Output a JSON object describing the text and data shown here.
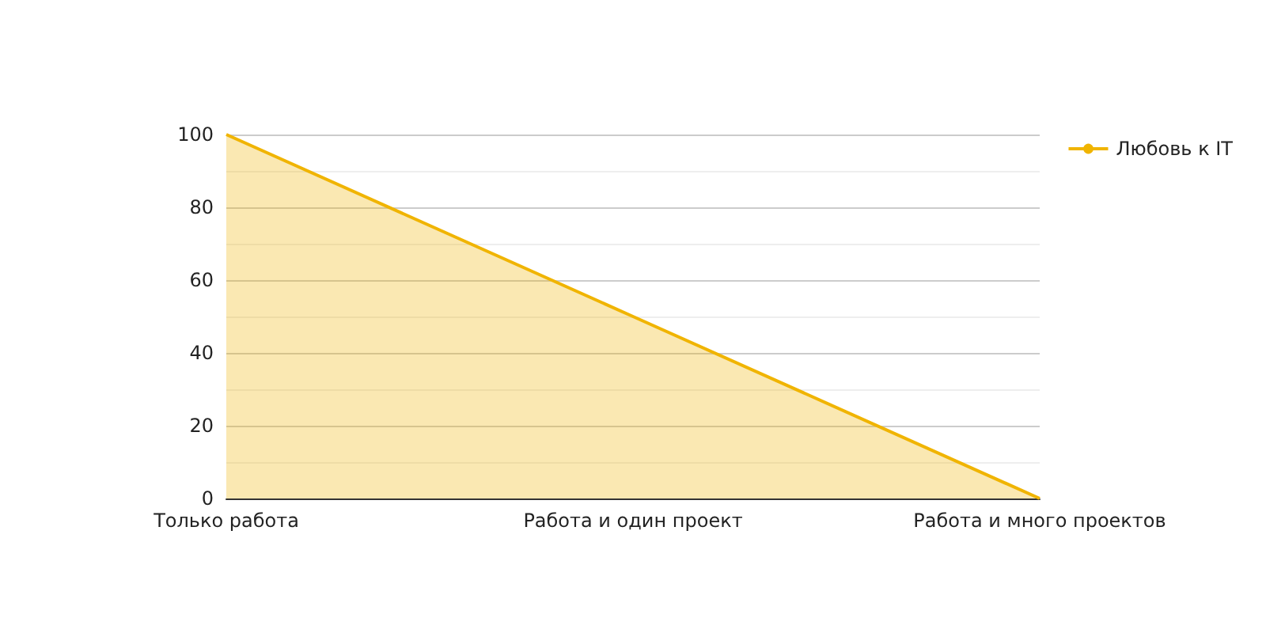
{
  "chart_data": {
    "type": "area",
    "categories": [
      "Только работа",
      "Работа и один проект",
      "Работа и много проектов"
    ],
    "series": [
      {
        "name": "Любовь к IT",
        "color": "#f0b400",
        "values": [
          100,
          50,
          0
        ]
      }
    ],
    "ylim": [
      0,
      100
    ],
    "yticks": [
      0,
      20,
      40,
      60,
      80,
      100
    ],
    "grid": "y",
    "legend": "top right",
    "marker": "none"
  }
}
